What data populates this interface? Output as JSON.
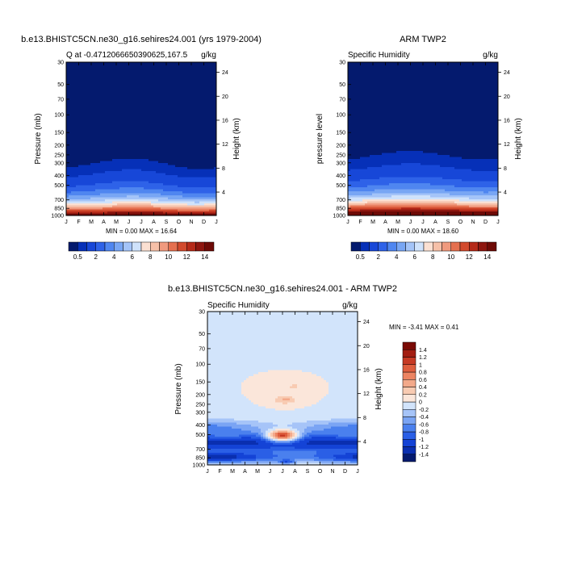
{
  "chart_data": [
    {
      "type": "heatmap",
      "title": "b.e13.BHISTC5CN.ne30_g16.sehires24.001 (yrs 1979-2004)",
      "left_subtitle": "Q at -0.4712066650390625,167.5",
      "right_subtitle": "g/kg",
      "ylabel": "Pressure (mb)",
      "y2label": "Height (km)",
      "x_ticks": [
        "J",
        "F",
        "M",
        "A",
        "M",
        "J",
        "J",
        "A",
        "S",
        "O",
        "N",
        "D",
        "J"
      ],
      "y_ticks": [
        "30",
        "50",
        "70",
        "100",
        "150",
        "200",
        "250",
        "300",
        "400",
        "500",
        "700",
        "850",
        "1000"
      ],
      "y2_ticks": [
        "24",
        "20",
        "16",
        "12",
        "8",
        "4"
      ],
      "stats": "MIN =   0.00 MAX =  16.64",
      "colorbar_labels": [
        "0.5",
        "2",
        "4",
        "6",
        "8",
        "10",
        "12",
        "14"
      ],
      "levels": [
        0.5,
        1,
        2,
        3,
        4,
        5,
        6,
        7,
        8,
        9,
        10,
        11,
        12,
        13,
        14
      ],
      "colors": [
        "#041a6e",
        "#0630b8",
        "#1747d8",
        "#2e62e8",
        "#4f86f0",
        "#78a6f4",
        "#a4c4f8",
        "#cfe2fb",
        "#fbe0d2",
        "#f6c0a8",
        "#f09a7e",
        "#e5704f",
        "#d24a2d",
        "#b52a19",
        "#8e160f",
        "#6e0a06"
      ],
      "data_source": "model"
    },
    {
      "type": "heatmap",
      "title": "ARM TWP2",
      "left_subtitle": "Specific Humidity",
      "right_subtitle": "g/kg",
      "ylabel": "pressure level",
      "y2label": "Height (km)",
      "x_ticks": [
        "J",
        "F",
        "M",
        "A",
        "M",
        "J",
        "J",
        "A",
        "S",
        "O",
        "N",
        "D",
        "J"
      ],
      "y_ticks": [
        "30",
        "50",
        "70",
        "100",
        "150",
        "200",
        "250",
        "300",
        "400",
        "500",
        "700",
        "850",
        "1000"
      ],
      "y2_ticks": [
        "24",
        "20",
        "16",
        "12",
        "8",
        "4"
      ],
      "stats": "MIN =   0.00 MAX =  18.60",
      "colorbar_labels": [
        "0.5",
        "2",
        "4",
        "6",
        "8",
        "10",
        "12",
        "14"
      ],
      "levels": [
        0.5,
        1,
        2,
        3,
        4,
        5,
        6,
        7,
        8,
        9,
        10,
        11,
        12,
        13,
        14
      ],
      "colors": [
        "#041a6e",
        "#0630b8",
        "#1747d8",
        "#2e62e8",
        "#4f86f0",
        "#78a6f4",
        "#a4c4f8",
        "#cfe2fb",
        "#fbe0d2",
        "#f6c0a8",
        "#f09a7e",
        "#e5704f",
        "#d24a2d",
        "#b52a19",
        "#8e160f",
        "#6e0a06"
      ],
      "data_source": "obs"
    },
    {
      "type": "heatmap",
      "title": "b.e13.BHISTC5CN.ne30_g16.sehires24.001 - ARM TWP2",
      "left_subtitle": "Specific Humidity",
      "right_subtitle": "g/kg",
      "ylabel": "Pressure (mb)",
      "y2label": "Height (km)",
      "x_ticks": [
        "J",
        "F",
        "M",
        "A",
        "M",
        "J",
        "J",
        "A",
        "S",
        "O",
        "N",
        "D",
        "J"
      ],
      "y_ticks": [
        "30",
        "50",
        "70",
        "100",
        "150",
        "200",
        "250",
        "300",
        "400",
        "500",
        "700",
        "850",
        "1000"
      ],
      "y2_ticks": [
        "24",
        "20",
        "16",
        "12",
        "8",
        "4"
      ],
      "stats": "MIN =  -3.41 MAX =   0.41",
      "colorbar_labels": [
        "1.4",
        "1.2",
        "1",
        "0.8",
        "0.6",
        "0.4",
        "0.2",
        "0",
        "-0.2",
        "-0.4",
        "-0.6",
        "-0.8",
        "-1",
        "-1.2",
        "-1.4"
      ],
      "levels": [
        -1.4,
        -1.2,
        -1,
        -0.8,
        -0.6,
        -0.4,
        -0.2,
        0,
        0.2,
        0.4,
        0.6,
        0.8,
        1,
        1.2,
        1.4
      ],
      "colors": [
        "#041a6e",
        "#0a2fb0",
        "#1443d6",
        "#2a5fe6",
        "#4a80ee",
        "#7aa4f4",
        "#a6c4f8",
        "#d2e4fb",
        "#fbe6da",
        "#f8cbb2",
        "#f3a98a",
        "#ec8462",
        "#de5e3e",
        "#c63a24",
        "#a31e12",
        "#7a0a05"
      ],
      "data_source": "diff"
    }
  ]
}
